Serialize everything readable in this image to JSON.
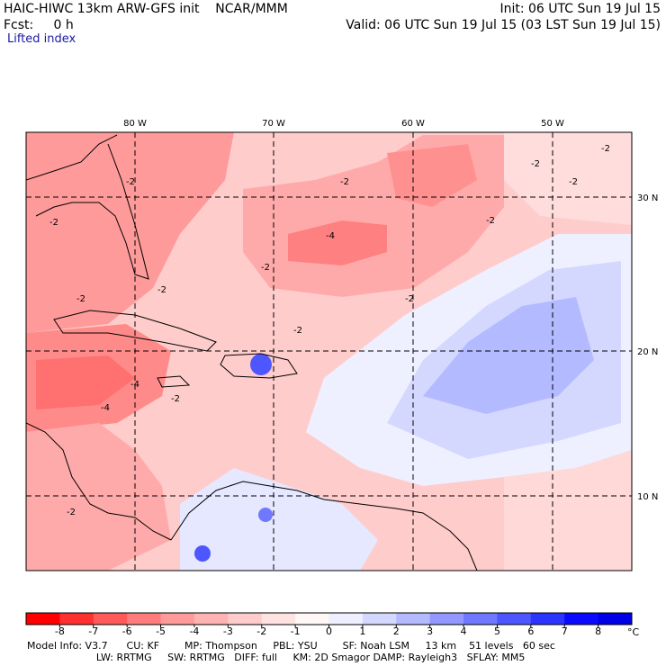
{
  "header": {
    "title": "HAIC-HIWC 13km ARW-GFS init    NCAR/MMM",
    "init": "Init: 06 UTC Sun 19 Jul 15",
    "fcst": "Fcst:     0 h",
    "valid": "Valid: 06 UTC Sun 19 Jul 15 (03 LST Sun 19 Jul 15)",
    "field": "Lifted index"
  },
  "axes": {
    "lon_labels": [
      "80 W",
      "70 W",
      "60 W",
      "50 W"
    ],
    "lat_labels": [
      "30 N",
      "20 N",
      "10 N"
    ]
  },
  "contour_labels": [
    "-2",
    "-2",
    "-2",
    "-2",
    "-2",
    "-2",
    "-4",
    "-4",
    "-2",
    "-2",
    "-4",
    "-2",
    "-2",
    "-2",
    "-2",
    "-2",
    "-2"
  ],
  "colorbar": {
    "ticks": [
      "-8",
      "-7",
      "-6",
      "-5",
      "-4",
      "-3",
      "-2",
      "-1",
      "0",
      "1",
      "2",
      "3",
      "4",
      "5",
      "6",
      "7",
      "8"
    ],
    "unit": "°C",
    "colors": [
      "#ff0000",
      "#ff3030",
      "#ff5a5a",
      "#ff7c7c",
      "#ff9a9a",
      "#ffb4b4",
      "#ffcccc",
      "#ffe2e2",
      "#fff6f6",
      "#eef0ff",
      "#d4d8ff",
      "#b4baff",
      "#9298ff",
      "#7078ff",
      "#4e56ff",
      "#2c34ff",
      "#0a0aff",
      "#0000e6"
    ]
  },
  "info": {
    "line1": "Model Info: V3.7      CU: KF        MP: Thompson     PBL: YSU        SF: Noah LSM     13 km    51 levels   60 sec",
    "line2": "                      LW: RRTMG     SW: RRTMG   DIFF: full     KM: 2D Smagor DAMP: Rayleigh3   SFLAY: MM5"
  }
}
